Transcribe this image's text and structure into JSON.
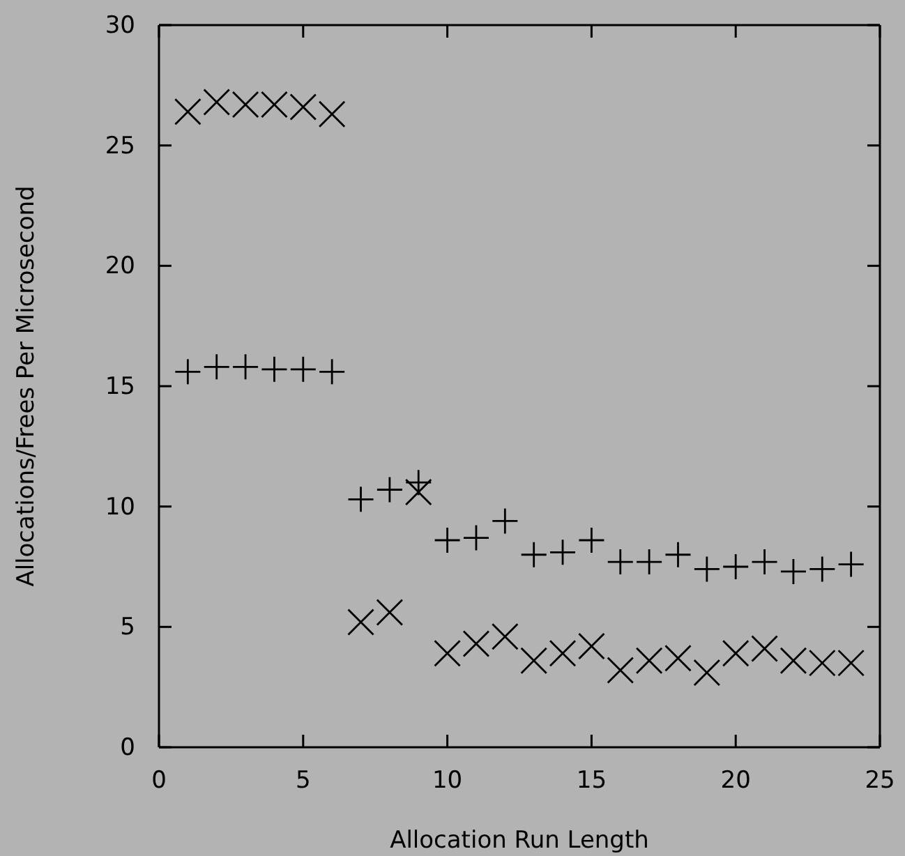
{
  "chart_data": {
    "type": "scatter",
    "xlabel": "Allocation Run Length",
    "ylabel": "Allocations/Frees Per Microsecond",
    "xlim": [
      0,
      25
    ],
    "xticks": [
      0,
      5,
      10,
      15,
      20,
      25
    ],
    "ylim": [
      0,
      30
    ],
    "yticks": [
      0,
      5,
      10,
      15,
      20,
      25,
      30
    ],
    "grid": false,
    "x": [
      1,
      2,
      3,
      4,
      5,
      6,
      7,
      8,
      9,
      10,
      11,
      12,
      13,
      14,
      15,
      16,
      17,
      18,
      19,
      20,
      21,
      22,
      23,
      24
    ],
    "series": [
      {
        "color": "#000000",
        "marker": "cross",
        "values": [
          15.6,
          15.8,
          15.8,
          15.7,
          15.7,
          15.6,
          10.3,
          10.7,
          11.0,
          8.6,
          8.7,
          9.4,
          8.0,
          8.1,
          8.6,
          7.7,
          7.7,
          8.0,
          7.4,
          7.5,
          7.7,
          7.3,
          7.4,
          7.6
        ]
      },
      {
        "color": "#000000",
        "marker": "x",
        "values": [
          26.4,
          26.8,
          26.7,
          26.7,
          26.6,
          26.3,
          5.2,
          5.6,
          10.6,
          3.9,
          4.3,
          4.6,
          3.6,
          3.9,
          4.2,
          3.2,
          3.6,
          3.7,
          3.1,
          3.9,
          4.1,
          3.6,
          3.5,
          3.5
        ]
      }
    ]
  }
}
